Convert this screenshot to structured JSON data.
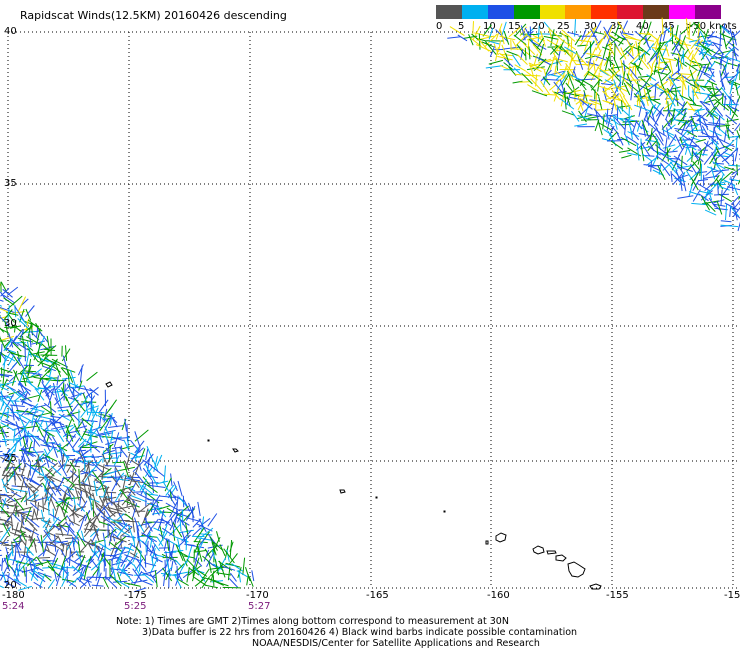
{
  "title": "Rapidscat Winds(12.5KM) 20160426 descending",
  "legend": {
    "colors": [
      "#555555",
      "#00b0f0",
      "#1e50e6",
      "#009900",
      "#f0e000",
      "#ff9a00",
      "#ff3000",
      "#dd1530",
      "#6b3a1a",
      "#ff00ff",
      "#8a008a"
    ],
    "labels": [
      "0",
      "5",
      "10",
      "15",
      "20",
      "25",
      "30",
      "35",
      "40",
      "45",
      ">50 knots"
    ]
  },
  "axes": {
    "lat_labels": [
      "40",
      "35",
      "30",
      "25",
      "20"
    ],
    "lon_labels": [
      "-180",
      "-175",
      "-170",
      "-165",
      "-160",
      "-155",
      "-15"
    ],
    "time_labels": [
      "5:24",
      "5:25",
      "5:27"
    ]
  },
  "notes": [
    "Note: 1) Times are GMT 2)Times along bottom correspond to measurement at 30N",
    "3)Data buffer is 22 hrs from 20160426 4) Black wind barbs indicate possible contamination",
    "NOAA/NESDIS/Center for Satellite Applications and Research"
  ]
}
